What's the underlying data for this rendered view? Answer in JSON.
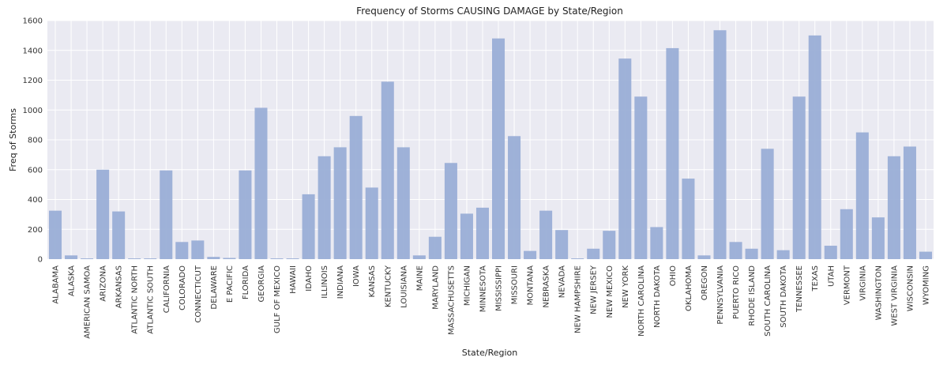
{
  "chart_data": {
    "type": "bar",
    "title": "Frequency of Storms CAUSING DAMAGE by State/Region",
    "xlabel": "State/Region",
    "ylabel": "Freq of Storms",
    "ylim": [
      0,
      1600
    ],
    "yticks": [
      0,
      200,
      400,
      600,
      800,
      1000,
      1200,
      1400,
      1600
    ],
    "grid": true,
    "bar_color": "#9aaed6",
    "background": "#eaeaf2",
    "categories": [
      "ALABAMA",
      "ALASKA",
      "AMERICAN SAMOA",
      "ARIZONA",
      "ARKANSAS",
      "ATLANTIC NORTH",
      "ATLANTIC SOUTH",
      "CALIFORNIA",
      "COLORADO",
      "CONNECTICUT",
      "DELAWARE",
      "E PACIFIC",
      "FLORIDA",
      "GEORGIA",
      "GULF OF MEXICO",
      "HAWAII",
      "IDAHO",
      "ILLINOIS",
      "INDIANA",
      "IOWA",
      "KANSAS",
      "KENTUCKY",
      "LOUISIANA",
      "MAINE",
      "MARYLAND",
      "MASSACHUSETTS",
      "MICHIGAN",
      "MINNESOTA",
      "MISSISSIPPI",
      "MISSOURI",
      "MONTANA",
      "NEBRASKA",
      "NEVADA",
      "NEW HAMPSHIRE",
      "NEW JERSEY",
      "NEW MEXICO",
      "NEW YORK",
      "NORTH CAROLINA",
      "NORTH DAKOTA",
      "OHIO",
      "OKLAHOMA",
      "OREGON",
      "PENNSYLVANIA",
      "PUERTO RICO",
      "RHODE ISLAND",
      "SOUTH CAROLINA",
      "SOUTH DAKOTA",
      "TENNESSEE",
      "TEXAS",
      "UTAH",
      "VERMONT",
      "VIRGINIA",
      "WASHINGTON",
      "WEST VIRGINIA",
      "WISCONSIN",
      "WYOMING"
    ],
    "values": [
      325,
      25,
      5,
      600,
      320,
      5,
      5,
      595,
      115,
      125,
      15,
      8,
      595,
      1015,
      5,
      5,
      435,
      690,
      750,
      960,
      480,
      1190,
      750,
      25,
      150,
      645,
      305,
      345,
      1480,
      825,
      55,
      325,
      195,
      5,
      70,
      190,
      1345,
      1090,
      215,
      1415,
      540,
      25,
      1535,
      115,
      70,
      740,
      60,
      1090,
      1500,
      90,
      335,
      850,
      280,
      690,
      755,
      50
    ]
  }
}
